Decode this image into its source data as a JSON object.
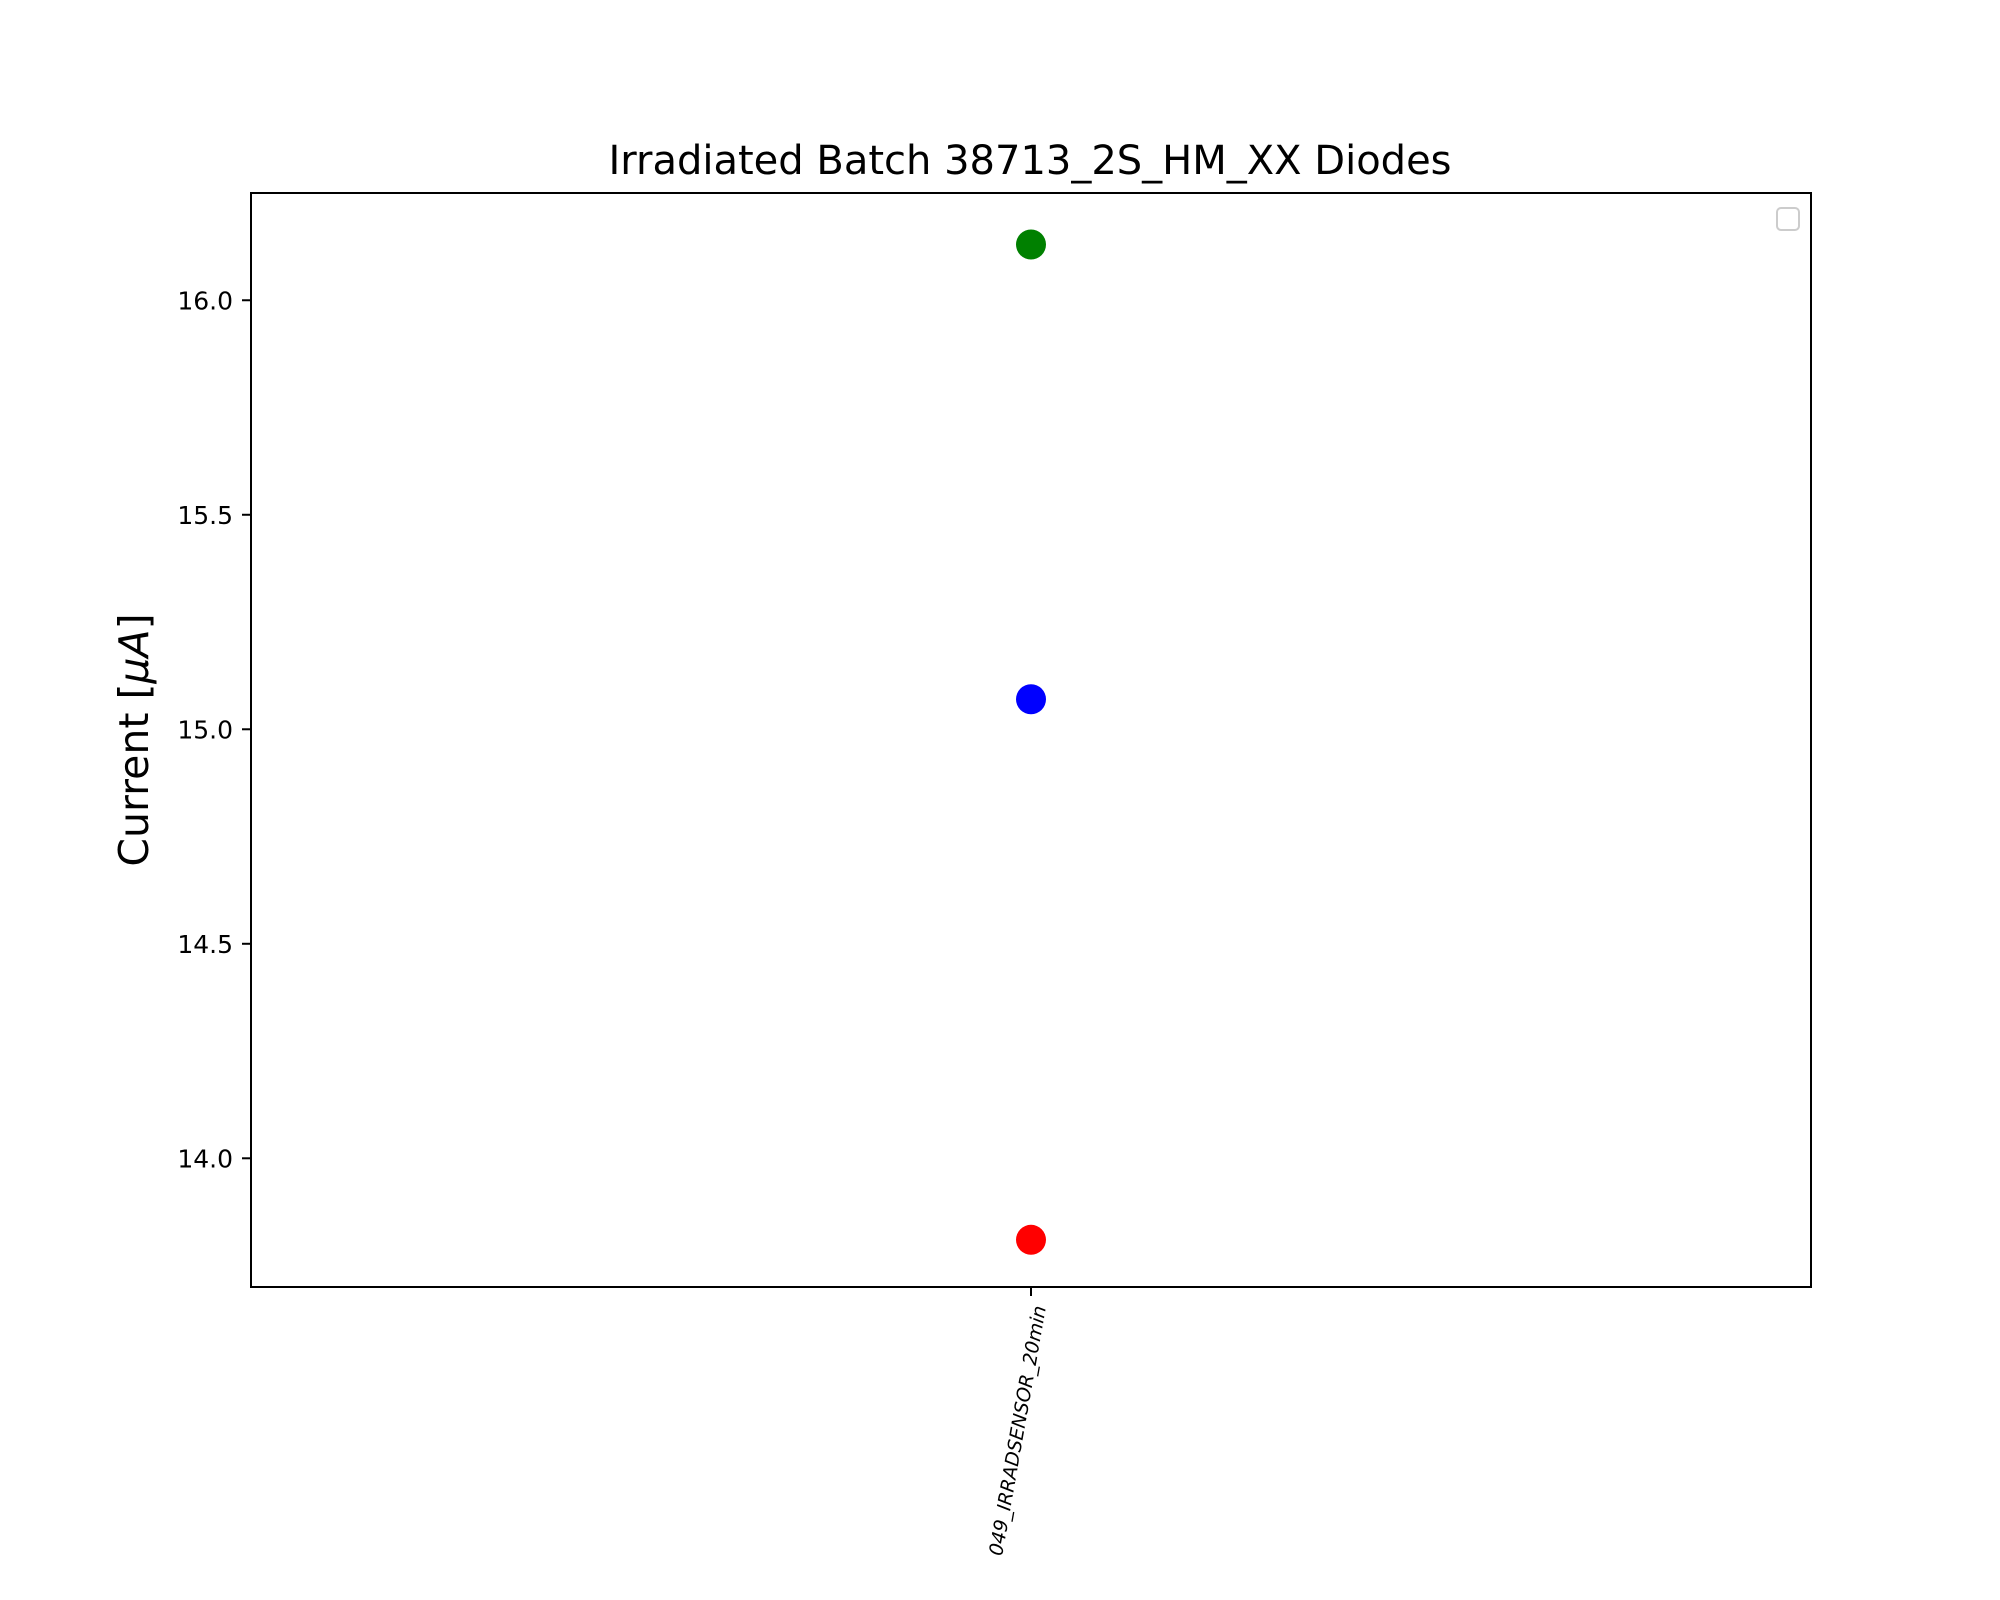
{
  "chart_data": {
    "type": "scatter",
    "title": "Irradiated Batch 38713_2S_HM_XX Diodes",
    "ylabel_main": "Current [",
    "ylabel_unit": "μA",
    "ylabel_close": "]",
    "xlabel": "",
    "categories": [
      "049_IRRADSENSOR_20min"
    ],
    "ylim": [
      13.7,
      16.25
    ],
    "yticks": [
      "14.0",
      "14.5",
      "15.0",
      "15.5",
      "16.0"
    ],
    "series": [
      {
        "color": "#008000",
        "values": [
          16.13
        ]
      },
      {
        "color": "#0000ff",
        "values": [
          15.07
        ]
      },
      {
        "color": "#ff0000",
        "values": [
          13.81
        ]
      }
    ],
    "legend": {
      "position": "top-right",
      "entries": []
    },
    "grid": false
  }
}
